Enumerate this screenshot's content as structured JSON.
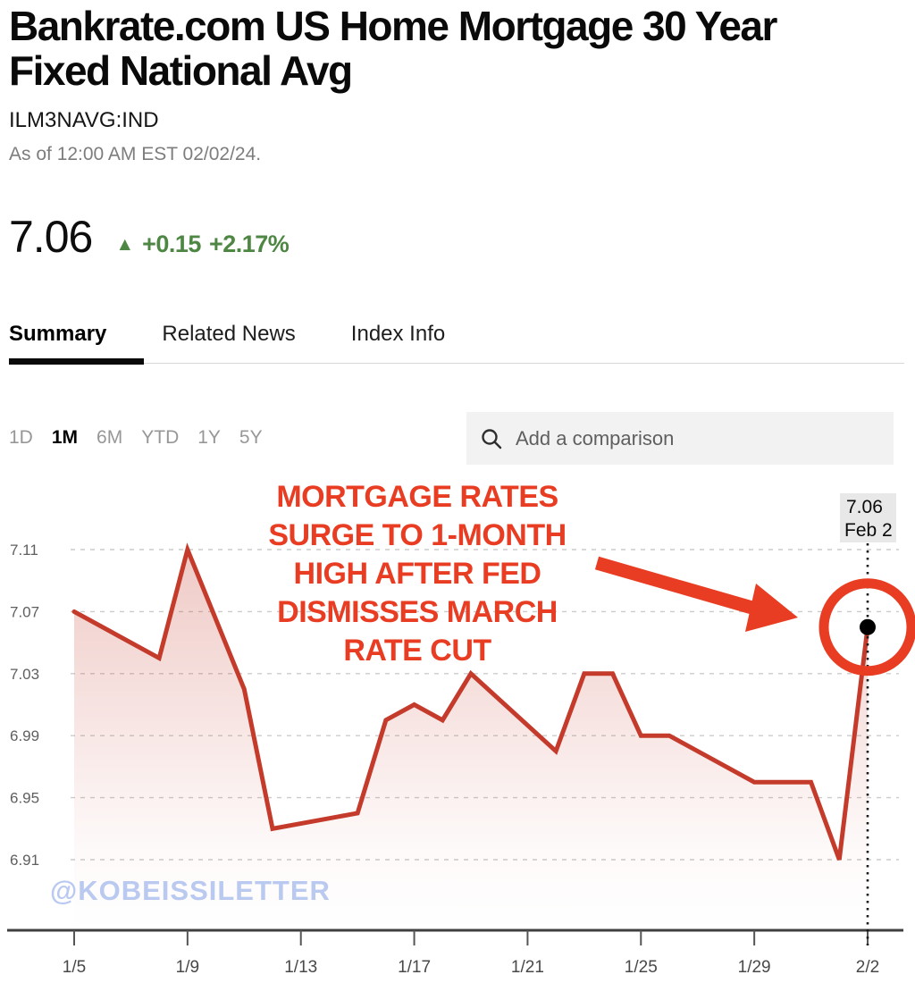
{
  "header": {
    "title_lines": [
      "Bankrate.com US Home Mortgage 30 Year",
      "Fixed National Avg"
    ],
    "title": "Bankrate.com US Home Mortgage 30 Year Fixed National Avg",
    "ticker": "ILM3NAVG:IND",
    "as_of": "As of 12:00 AM EST 02/02/24.",
    "price": "7.06",
    "change": {
      "direction": "up",
      "arrow": "▲",
      "abs": "+0.15",
      "pct": "+2.17%"
    }
  },
  "tabs": [
    {
      "label": "Summary",
      "active": true
    },
    {
      "label": "Related News",
      "active": false
    },
    {
      "label": "Index Info",
      "active": false
    }
  ],
  "ranges": [
    {
      "label": "1D",
      "active": false
    },
    {
      "label": "1M",
      "active": true
    },
    {
      "label": "6M",
      "active": false
    },
    {
      "label": "YTD",
      "active": false
    },
    {
      "label": "1Y",
      "active": false
    },
    {
      "label": "5Y",
      "active": false
    }
  ],
  "comparison": {
    "placeholder": "Add a comparison",
    "icon": "search-icon"
  },
  "annotation": {
    "lines": [
      "MORTGAGE RATES",
      "SURGE TO 1-MONTH",
      "HIGH AFTER FED",
      "DISMISSES MARCH",
      "RATE CUT"
    ]
  },
  "callout": {
    "value": "7.06",
    "date": "Feb 2"
  },
  "watermark": "@KOBEISSILETTER",
  "colors": {
    "line": "#c43b2c",
    "accent": "#e83d23",
    "positive": "#4e8743",
    "grid": "#cbcbcb",
    "axis": "#3f3f3f",
    "callout_bg": "#e8e8e8",
    "watermark": "#b9c9f0"
  },
  "chart_data": {
    "type": "line",
    "title": "Bankrate.com US Home Mortgage 30 Year Fixed National Avg (1M)",
    "series": [
      {
        "name": "ILM3NAVG:IND",
        "points": [
          {
            "date": "1/5",
            "value": 7.07
          },
          {
            "date": "1/8",
            "value": 7.04
          },
          {
            "date": "1/9",
            "value": 7.11
          },
          {
            "date": "1/11",
            "value": 7.02
          },
          {
            "date": "1/12",
            "value": 6.93
          },
          {
            "date": "1/15",
            "value": 6.94
          },
          {
            "date": "1/16",
            "value": 7.0
          },
          {
            "date": "1/17",
            "value": 7.01
          },
          {
            "date": "1/18",
            "value": 7.0
          },
          {
            "date": "1/19",
            "value": 7.03
          },
          {
            "date": "1/22",
            "value": 6.98
          },
          {
            "date": "1/23",
            "value": 7.03
          },
          {
            "date": "1/24",
            "value": 7.03
          },
          {
            "date": "1/25",
            "value": 6.99
          },
          {
            "date": "1/26",
            "value": 6.99
          },
          {
            "date": "1/29",
            "value": 6.96
          },
          {
            "date": "1/31",
            "value": 6.96
          },
          {
            "date": "2/1",
            "value": 6.91
          },
          {
            "date": "2/2",
            "value": 7.06
          }
        ]
      }
    ],
    "yticks": [
      7.11,
      7.07,
      7.03,
      6.99,
      6.95,
      6.91
    ],
    "xticks": [
      "1/5",
      "1/9",
      "1/13",
      "1/17",
      "1/21",
      "1/25",
      "1/29",
      "2/2"
    ],
    "ylim": [
      6.885,
      7.125
    ],
    "grid": "dashed-horizontal",
    "legend": "none",
    "last_point": {
      "date": "2/2",
      "value": 7.06
    }
  }
}
